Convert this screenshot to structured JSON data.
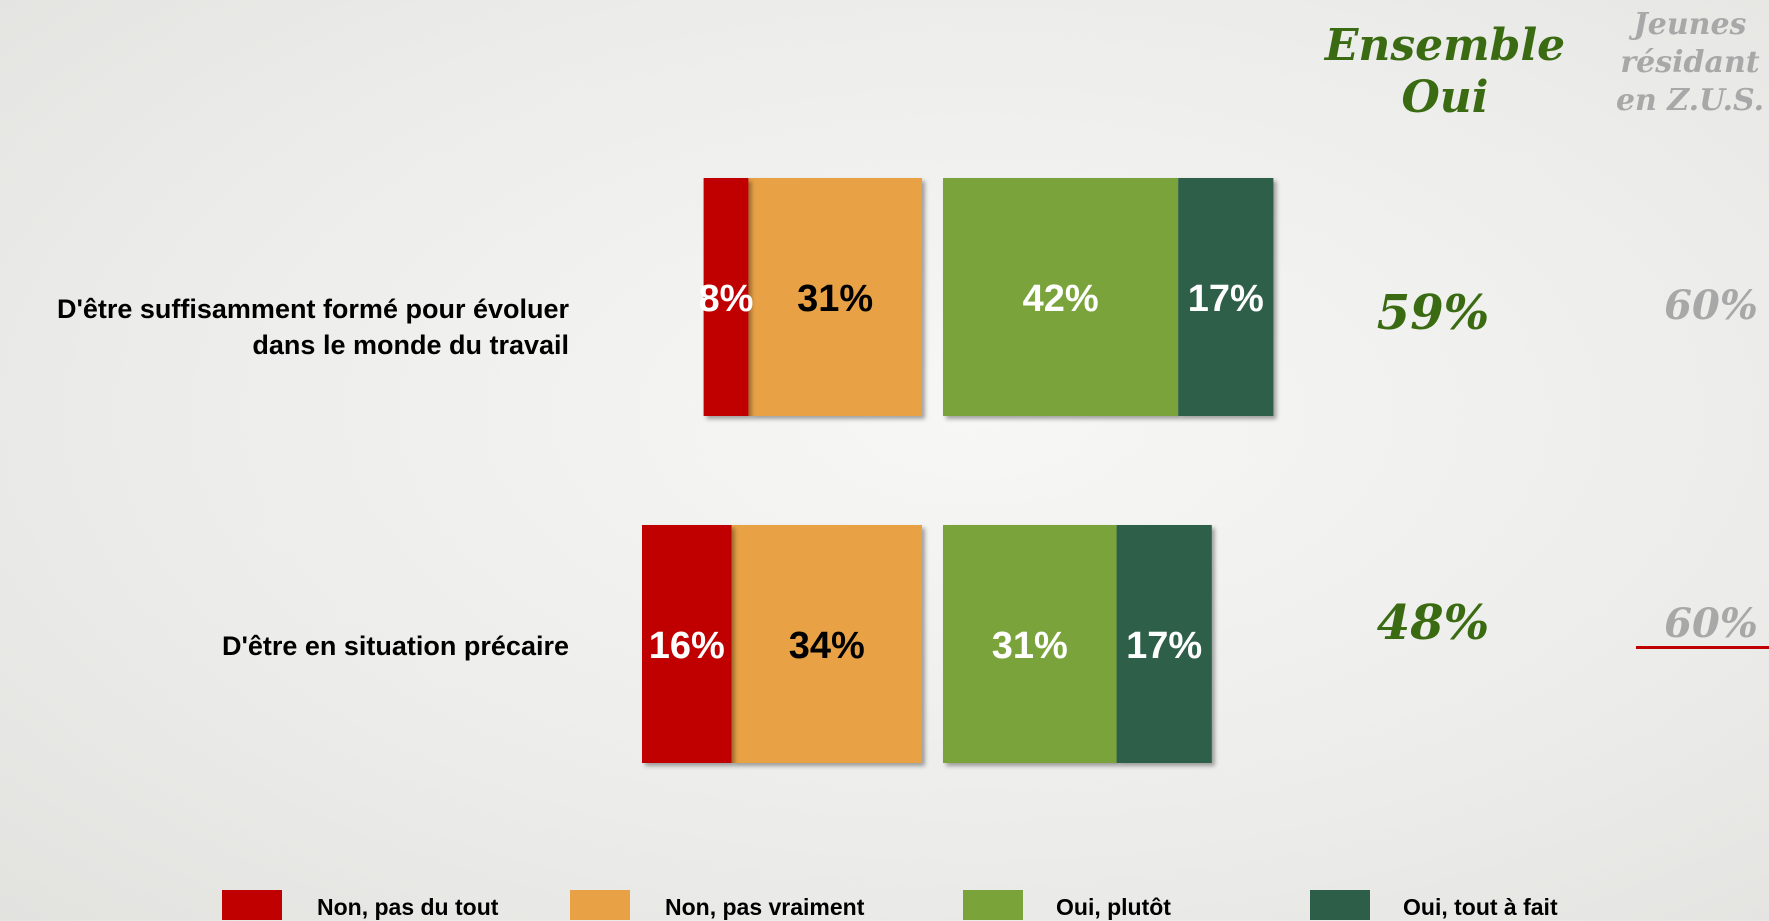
{
  "header": {
    "ensemble_line1": "Ensemble",
    "ensemble_line2": "Oui",
    "zus_line1": "Jeunes",
    "zus_line2": "résidant",
    "zus_line3": "en Z.U.S."
  },
  "colors": {
    "non_pas_du_tout": "#c00000",
    "non_pas_vraiment": "#e8a245",
    "oui_plutot": "#7aa43a",
    "oui_tout_a_fait": "#2d5f48",
    "ensemble_text": "#3a6b12",
    "zus_text": "#a8a8a8",
    "zus_underline": "#c00000"
  },
  "chart_data": {
    "type": "bar",
    "orientation": "horizontal",
    "stacked": "diverging",
    "categories": [
      "D'être suffisamment formé pour évoluer dans le monde du travail",
      "D'être en situation précaire"
    ],
    "category_lines": [
      [
        "D'être suffisamment formé pour évoluer",
        "dans le monde du travail"
      ],
      [
        "D'être en situation précaire"
      ]
    ],
    "series": [
      {
        "name": "Non, pas du tout",
        "side": "negative",
        "values": [
          8,
          16
        ],
        "labels": [
          "8%",
          "16%"
        ],
        "label_color": "#ffffff"
      },
      {
        "name": "Non, pas vraiment",
        "side": "negative",
        "values": [
          31,
          34
        ],
        "labels": [
          "31%",
          "34%"
        ],
        "label_color": "#000000"
      },
      {
        "name": "Oui, plutôt",
        "side": "positive",
        "values": [
          42,
          31
        ],
        "labels": [
          "42%",
          "31%"
        ],
        "label_color": "#ffffff"
      },
      {
        "name": "Oui, tout à fait",
        "side": "positive",
        "values": [
          17,
          17
        ],
        "labels": [
          "17%",
          "17%"
        ],
        "label_color": "#ffffff"
      }
    ],
    "legend_position": "bottom",
    "grid": false
  },
  "totals": {
    "ensemble_oui": [
      "59%",
      "48%"
    ],
    "jeunes_zus": [
      "60%",
      "60%"
    ],
    "zus_underlined": [
      false,
      true
    ]
  }
}
